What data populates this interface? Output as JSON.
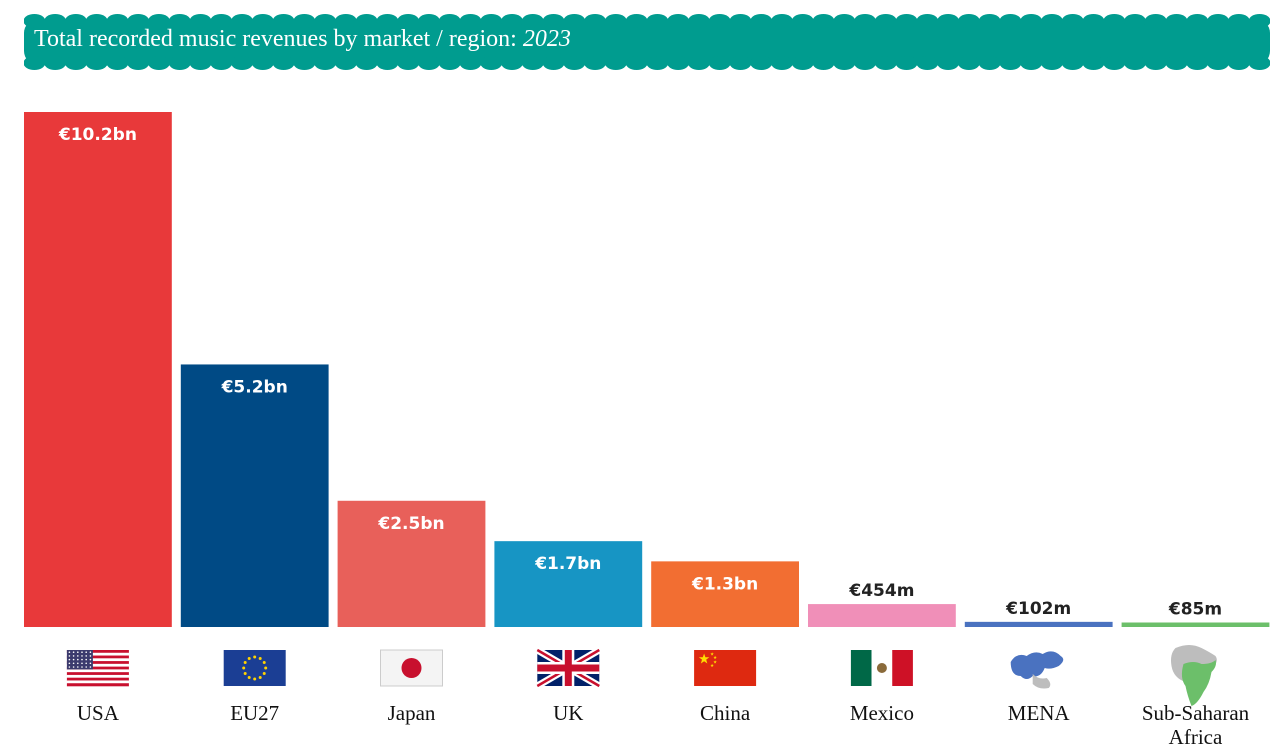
{
  "title": {
    "prefix": "Total recorded music revenues by market / region: ",
    "year": "2023"
  },
  "colors": {
    "banner": "#009C8F"
  },
  "chart_data": {
    "type": "bar",
    "title": "Total recorded music revenues by market / region: 2023",
    "unit": "EUR billions",
    "categories": [
      "USA",
      "EU27",
      "Japan",
      "UK",
      "China",
      "Mexico",
      "MENA",
      "Sub-Saharan Africa"
    ],
    "values": [
      10.2,
      5.2,
      2.5,
      1.7,
      1.3,
      0.454,
      0.102,
      0.085
    ],
    "value_labels": [
      "€10.2bn",
      "€5.2bn",
      "€2.5bn",
      "€1.7bn",
      "€1.3bn",
      "€454m",
      "€102m",
      "€85m"
    ],
    "colors": [
      "#E8393A",
      "#004A85",
      "#E8605A",
      "#1795C4",
      "#F26E32",
      "#F08FB8",
      "#4A72C0",
      "#6CBF6A"
    ],
    "label_inside": [
      true,
      true,
      true,
      true,
      true,
      false,
      false,
      false
    ],
    "icons": [
      "usa-flag-icon",
      "eu-flag-icon",
      "japan-flag-icon",
      "uk-flag-icon",
      "china-flag-icon",
      "mexico-flag-icon",
      "mena-map-icon",
      "africa-map-icon"
    ],
    "ylim": [
      0,
      10.2
    ],
    "grid": false,
    "legend": "none"
  }
}
